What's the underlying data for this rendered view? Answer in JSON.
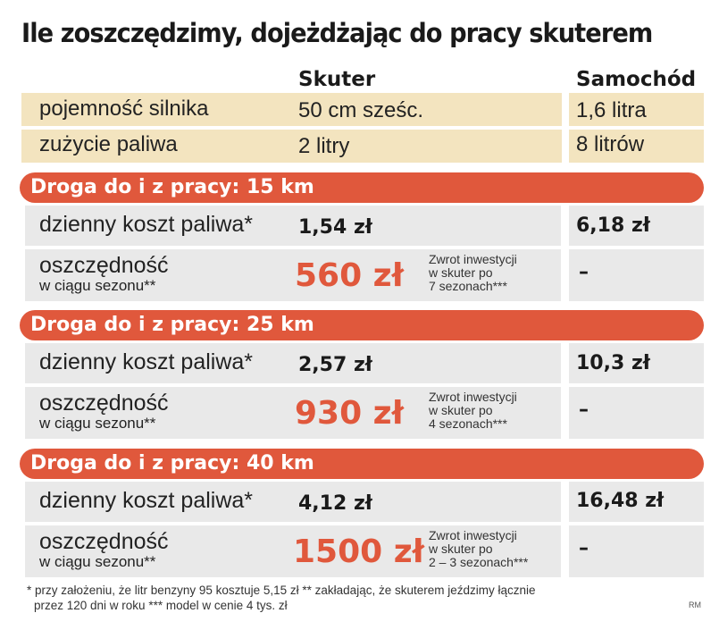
{
  "title": "Ile zoszczędzimy, dojeżdżając do pracy skuterem",
  "columns": {
    "scooter": "Skuter",
    "car": "Samochód"
  },
  "specs": [
    {
      "label": "pojemność silnika",
      "scooter": "50 cm sześc.",
      "car": "1,6 litra"
    },
    {
      "label": "zużycie paliwa",
      "scooter": "2 litry",
      "car": "8 litrów"
    }
  ],
  "sections": [
    {
      "heading": "Droga do i z pracy: 15 km",
      "daily_label": "dzienny koszt paliwa*",
      "daily_scooter": "1,54 zł",
      "daily_car": "6,18 zł",
      "savings_label": "oszczędność",
      "savings_sublabel": "w ciągu sezonu**",
      "savings_value": "560 zł",
      "note_lines": [
        "Zwrot inwestycji",
        "w skuter po",
        "7 sezonach***"
      ],
      "savings_car": "–"
    },
    {
      "heading": "Droga do i z pracy: 25 km",
      "daily_label": "dzienny koszt paliwa*",
      "daily_scooter": "2,57 zł",
      "daily_car": "10,3 zł",
      "savings_label": "oszczędność",
      "savings_sublabel": "w ciągu sezonu**",
      "savings_value": "930 zł",
      "note_lines": [
        "Zwrot inwestycji",
        "w skuter po",
        "4 sezonach***"
      ],
      "savings_car": "–"
    },
    {
      "heading": "Droga do i z pracy: 40 km",
      "daily_label": "dzienny koszt paliwa*",
      "daily_scooter": "4,12 zł",
      "daily_car": "16,48 zł",
      "savings_label": "oszczędność",
      "savings_sublabel": "w ciągu sezonu**",
      "savings_value": "1500 zł",
      "note_lines": [
        "Zwrot inwestycji",
        "w skuter po",
        "2 – 3 sezonach***"
      ],
      "savings_car": "–"
    }
  ],
  "footnote_lines": [
    "* przy założeniu, że litr benzyny 95 kosztuje 5,15 zł ** zakładając, że skuterem jeździmy łącznie",
    "przez 120 dni w roku *** model w cenie 4 tys. zł"
  ],
  "signature": "RM",
  "colors": {
    "accent": "#e0583c",
    "beige": "#f3e4bf",
    "gray": "#e9e9e9"
  }
}
